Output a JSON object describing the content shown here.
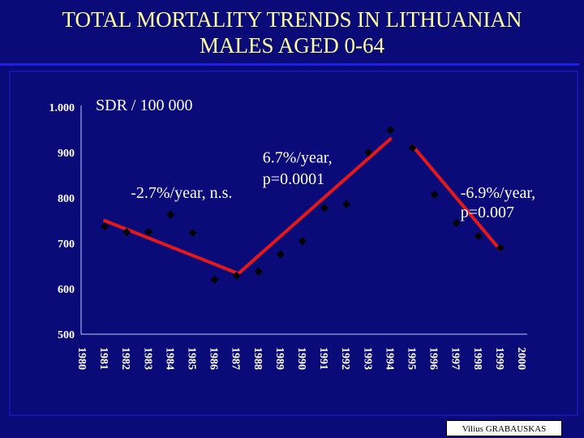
{
  "title_line1": "TOTAL MORTALITY  TRENDS IN LITHUANIAN",
  "title_line2": "MALES AGED 0-64",
  "credit": "Vilius GRABAUSKAS",
  "colors": {
    "background": "#0a0a78",
    "title": "#ffff9a",
    "trend": "#e81818",
    "point": "#000000",
    "text": "#ffffff"
  },
  "chart_data": {
    "type": "scatter",
    "ylabel": "SDR / 100 000",
    "ylim": [
      500,
      1000
    ],
    "y_ticks": [
      {
        "value": 500,
        "label": "500"
      },
      {
        "value": 600,
        "label": "600"
      },
      {
        "value": 700,
        "label": "700"
      },
      {
        "value": 800,
        "label": "800"
      },
      {
        "value": 900,
        "label": "900"
      },
      {
        "value": 1000,
        "label": "1.000"
      }
    ],
    "categories": [
      "1980",
      "1981",
      "1982",
      "1983",
      "1984",
      "1985",
      "1986",
      "1987",
      "1988",
      "1989",
      "1990",
      "1991",
      "1992",
      "1993",
      "1994",
      "1995",
      "1996",
      "1997",
      "1998",
      "1999",
      "2000"
    ],
    "values": [
      null,
      737,
      725,
      725,
      763,
      723,
      620,
      629,
      638,
      676,
      705,
      778,
      786,
      900,
      949,
      910,
      807,
      745,
      716,
      690,
      null
    ],
    "trend_lines": [
      {
        "from_year": "1981",
        "from_value": 750,
        "to_year": "1987",
        "to_value": 635
      },
      {
        "from_year": "1987",
        "from_value": 630,
        "to_year": "1994",
        "to_value": 930
      },
      {
        "from_year": "1995",
        "from_value": 915,
        "to_year": "1999",
        "to_value": 685
      }
    ],
    "annotations": [
      {
        "text": "-2.7%/year, n.s.",
        "year": "1982",
        "value": 800
      },
      {
        "text": "6.7%/year,",
        "year": "1988",
        "value": 878
      },
      {
        "text": "p=0.0001",
        "year": "1988",
        "value": 830
      },
      {
        "text": "-6.9%/year,",
        "year": "1997",
        "value": 800
      },
      {
        "text": "p=0.007",
        "year": "1997",
        "value": 757
      }
    ]
  }
}
